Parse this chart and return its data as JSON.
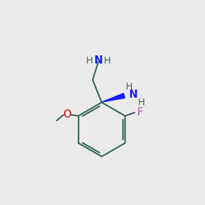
{
  "bg_color": "#ebebeb",
  "bond_color": "#3a6b5a",
  "N_color": "#1a1aff",
  "NH_color": "#3a6b5a",
  "O_color": "#cc0000",
  "F_color": "#bb44bb",
  "wedge_color": "#1a1aff",
  "figsize": [
    3.0,
    3.0
  ],
  "dpi": 100,
  "xlim": [
    0.0,
    1.0
  ],
  "ylim": [
    -0.85,
    0.55
  ]
}
